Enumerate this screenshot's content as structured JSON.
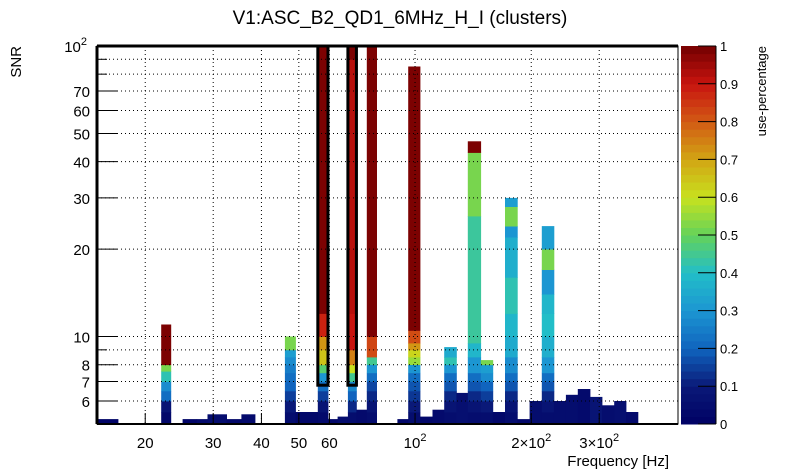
{
  "chart_data": {
    "type": "heatmap",
    "title": "V1:ASC_B2_QD1_6MHz_H_I (clusters)",
    "xlabel": "Frequency [Hz]",
    "ylabel": "SNR",
    "zlabel": "use-percentage",
    "x_scale": "log",
    "y_scale": "log",
    "xlim": [
      15,
      480
    ],
    "ylim": [
      5,
      100
    ],
    "zlim": [
      0,
      1
    ],
    "grid": true,
    "colorbar_placement": "right",
    "x_ticks": [
      {
        "value": 20,
        "label": "20"
      },
      {
        "value": 30,
        "label": "30"
      },
      {
        "value": 40,
        "label": "40"
      },
      {
        "value": 50,
        "label": "50"
      },
      {
        "value": 60,
        "label": "60"
      },
      {
        "value": 100,
        "label": "10",
        "exp": "2"
      },
      {
        "value": 200,
        "label": "2×10",
        "exp": "2"
      },
      {
        "value": 300,
        "label": "3×10",
        "exp": "2"
      }
    ],
    "y_ticks": [
      {
        "value": 6,
        "label": "6"
      },
      {
        "value": 7,
        "label": "7"
      },
      {
        "value": 8,
        "label": "8"
      },
      {
        "value": 10,
        "label": "10"
      },
      {
        "value": 20,
        "label": "20"
      },
      {
        "value": 30,
        "label": "30"
      },
      {
        "value": 40,
        "label": "40"
      },
      {
        "value": 50,
        "label": "50"
      },
      {
        "value": 60,
        "label": "60"
      },
      {
        "value": 70,
        "label": "70"
      },
      {
        "value": 100,
        "label": "10",
        "exp": "2"
      }
    ],
    "y_unlabeled_ticks": [
      9,
      80,
      90
    ],
    "z_ticks": [
      "0",
      "0.1",
      "0.2",
      "0.3",
      "0.4",
      "0.5",
      "0.6",
      "0.7",
      "0.8",
      "0.9",
      "1"
    ],
    "bins_per_column_note": "each column lists vertical segments from SNR 5 upward: [snr_top, use_percentage]",
    "columns": [
      {
        "f0": 15.0,
        "f1": 17.0,
        "segments": [
          [
            5.2,
            0.02
          ]
        ]
      },
      {
        "f0": 22.0,
        "f1": 23.3,
        "segments": [
          [
            5.5,
            0.03
          ],
          [
            6.0,
            0.08
          ],
          [
            6.5,
            0.22
          ],
          [
            7.0,
            0.28
          ],
          [
            7.6,
            0.42
          ],
          [
            8.0,
            0.52
          ],
          [
            11.0,
            0.99
          ]
        ]
      },
      {
        "f0": 25.0,
        "f1": 27.2,
        "segments": [
          [
            5.2,
            0.02
          ]
        ]
      },
      {
        "f0": 27.2,
        "f1": 29.0,
        "segments": [
          [
            5.2,
            0.04
          ]
        ]
      },
      {
        "f0": 29.0,
        "f1": 32.5,
        "segments": [
          [
            5.4,
            0.05
          ]
        ]
      },
      {
        "f0": 32.5,
        "f1": 35.5,
        "segments": [
          [
            5.2,
            0.03
          ]
        ]
      },
      {
        "f0": 35.5,
        "f1": 38.5,
        "segments": [
          [
            5.4,
            0.04
          ]
        ]
      },
      {
        "f0": 46.0,
        "f1": 49.0,
        "segments": [
          [
            5.5,
            0.05
          ],
          [
            6.0,
            0.1
          ],
          [
            6.5,
            0.15
          ],
          [
            7.0,
            0.2
          ],
          [
            7.5,
            0.22
          ],
          [
            8.0,
            0.25
          ],
          [
            8.5,
            0.28
          ],
          [
            9.0,
            0.32
          ],
          [
            10.0,
            0.52
          ]
        ]
      },
      {
        "f0": 49.0,
        "f1": 56.0,
        "segments": [
          [
            5.5,
            0.03
          ]
        ]
      },
      {
        "f0": 56.0,
        "f1": 59.5,
        "segments": [
          [
            5.5,
            0.04
          ],
          [
            6.0,
            0.08
          ],
          [
            6.5,
            0.15
          ],
          [
            7.0,
            0.22
          ],
          [
            7.5,
            0.3
          ],
          [
            8.0,
            0.48
          ],
          [
            9.0,
            0.65
          ],
          [
            10.0,
            0.72
          ],
          [
            12.0,
            0.88
          ],
          [
            100.0,
            0.99
          ]
        ]
      },
      {
        "f0": 59.5,
        "f1": 63.0,
        "segments": [
          [
            5.2,
            0.03
          ]
        ]
      },
      {
        "f0": 63.0,
        "f1": 67.0,
        "segments": [
          [
            5.3,
            0.05
          ]
        ]
      },
      {
        "f0": 67.0,
        "f1": 70.5,
        "segments": [
          [
            5.5,
            0.05
          ],
          [
            6.0,
            0.12
          ],
          [
            6.5,
            0.2
          ],
          [
            7.0,
            0.27
          ],
          [
            7.5,
            0.45
          ],
          [
            8.0,
            0.6
          ],
          [
            9.0,
            0.75
          ],
          [
            12.0,
            0.9
          ],
          [
            90.0,
            0.92
          ],
          [
            100.0,
            0.99
          ]
        ]
      },
      {
        "f0": 70.5,
        "f1": 75.0,
        "segments": [
          [
            5.6,
            0.04
          ]
        ]
      },
      {
        "f0": 75.0,
        "f1": 79.5,
        "segments": [
          [
            5.5,
            0.05
          ],
          [
            6.0,
            0.08
          ],
          [
            6.5,
            0.12
          ],
          [
            7.0,
            0.16
          ],
          [
            7.5,
            0.22
          ],
          [
            8.0,
            0.3
          ],
          [
            8.5,
            0.45
          ],
          [
            9.0,
            0.82
          ],
          [
            10.0,
            0.83
          ],
          [
            100.0,
            0.99
          ]
        ]
      },
      {
        "f0": 90.0,
        "f1": 96.0,
        "segments": [
          [
            5.2,
            0.03
          ]
        ]
      },
      {
        "f0": 96.0,
        "f1": 103.0,
        "segments": [
          [
            5.5,
            0.05
          ],
          [
            6.0,
            0.1
          ],
          [
            6.5,
            0.14
          ],
          [
            7.0,
            0.18
          ],
          [
            7.5,
            0.22
          ],
          [
            8.0,
            0.3
          ],
          [
            8.5,
            0.55
          ],
          [
            9.0,
            0.62
          ],
          [
            9.5,
            0.72
          ],
          [
            10.5,
            0.82
          ],
          [
            85.0,
            0.99
          ]
        ]
      },
      {
        "f0": 103.0,
        "f1": 111.0,
        "segments": [
          [
            5.3,
            0.03
          ]
        ]
      },
      {
        "f0": 111.0,
        "f1": 119.0,
        "segments": [
          [
            5.6,
            0.04
          ]
        ]
      },
      {
        "f0": 119.0,
        "f1": 128.0,
        "segments": [
          [
            5.5,
            0.05
          ],
          [
            6.0,
            0.08
          ],
          [
            6.5,
            0.12
          ],
          [
            7.0,
            0.18
          ],
          [
            7.5,
            0.22
          ],
          [
            8.0,
            0.3
          ],
          [
            8.5,
            0.42
          ],
          [
            9.2,
            0.35
          ]
        ]
      },
      {
        "f0": 128.0,
        "f1": 137.0,
        "segments": [
          [
            6.4,
            0.06
          ]
        ]
      },
      {
        "f0": 137.0,
        "f1": 148.0,
        "segments": [
          [
            5.5,
            0.05
          ],
          [
            6.0,
            0.08
          ],
          [
            6.5,
            0.12
          ],
          [
            7.0,
            0.18
          ],
          [
            7.5,
            0.22
          ],
          [
            8.5,
            0.3
          ],
          [
            9.5,
            0.38
          ],
          [
            26.0,
            0.44
          ],
          [
            43.0,
            0.52
          ],
          [
            47.0,
            0.99
          ]
        ]
      },
      {
        "f0": 148.0,
        "f1": 159.0,
        "segments": [
          [
            5.5,
            0.05
          ],
          [
            6.0,
            0.1
          ],
          [
            6.5,
            0.15
          ],
          [
            7.0,
            0.2
          ],
          [
            7.5,
            0.28
          ],
          [
            8.0,
            0.32
          ],
          [
            8.3,
            0.52
          ]
        ]
      },
      {
        "f0": 159.0,
        "f1": 171.0,
        "segments": [
          [
            5.5,
            0.03
          ]
        ]
      },
      {
        "f0": 171.0,
        "f1": 184.0,
        "segments": [
          [
            5.5,
            0.05
          ],
          [
            6.0,
            0.08
          ],
          [
            6.5,
            0.12
          ],
          [
            7.0,
            0.18
          ],
          [
            7.5,
            0.22
          ],
          [
            8.5,
            0.28
          ],
          [
            10.0,
            0.35
          ],
          [
            12.0,
            0.38
          ],
          [
            16.0,
            0.42
          ],
          [
            22.0,
            0.36
          ],
          [
            24.0,
            0.3
          ],
          [
            28.0,
            0.52
          ],
          [
            30.0,
            0.32
          ]
        ]
      },
      {
        "f0": 184.0,
        "f1": 198.0,
        "segments": [
          [
            5.2,
            0.03
          ]
        ]
      },
      {
        "f0": 198.0,
        "f1": 213.0,
        "segments": [
          [
            6.0,
            0.05
          ]
        ]
      },
      {
        "f0": 213.0,
        "f1": 229.0,
        "segments": [
          [
            5.5,
            0.05
          ],
          [
            6.0,
            0.08
          ],
          [
            6.5,
            0.12
          ],
          [
            7.0,
            0.18
          ],
          [
            7.5,
            0.22
          ],
          [
            8.5,
            0.3
          ],
          [
            10.0,
            0.36
          ],
          [
            12.0,
            0.4
          ],
          [
            14.0,
            0.38
          ],
          [
            17.0,
            0.3
          ],
          [
            20.0,
            0.52
          ],
          [
            24.0,
            0.32
          ]
        ]
      },
      {
        "f0": 229.0,
        "f1": 246.0,
        "segments": [
          [
            6.0,
            0.05
          ]
        ]
      },
      {
        "f0": 246.0,
        "f1": 264.0,
        "segments": [
          [
            6.3,
            0.05
          ]
        ]
      },
      {
        "f0": 264.0,
        "f1": 284.0,
        "segments": [
          [
            6.6,
            0.04
          ]
        ]
      },
      {
        "f0": 284.0,
        "f1": 305.0,
        "segments": [
          [
            6.2,
            0.08
          ]
        ]
      },
      {
        "f0": 305.0,
        "f1": 328.0,
        "segments": [
          [
            5.8,
            0.05
          ]
        ]
      },
      {
        "f0": 328.0,
        "f1": 352.0,
        "segments": [
          [
            6.0,
            0.06
          ]
        ]
      },
      {
        "f0": 352.0,
        "f1": 378.0,
        "segments": [
          [
            5.5,
            0.04
          ]
        ]
      }
    ],
    "highlight_boxes": [
      {
        "f0": 56.0,
        "f1": 59.5,
        "snr_low": 6.8,
        "snr_high": 100
      },
      {
        "f0": 67.0,
        "f1": 70.5,
        "snr_low": 6.8,
        "snr_high": 100
      }
    ]
  }
}
